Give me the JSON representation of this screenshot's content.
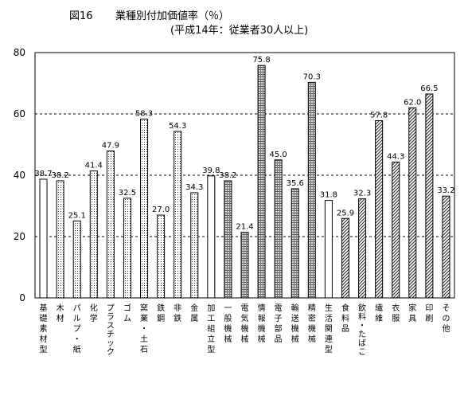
{
  "figure": {
    "label": "図16",
    "title": "業種別付加価値率（％）",
    "subtitle": "(平成14年：従業者30人以上)"
  },
  "chart_data": {
    "type": "bar",
    "title": "業種別付加価値率（％）",
    "subtitle": "(平成14年：従業者30人以上)",
    "xlabel": "",
    "ylabel": "",
    "ylim": [
      0,
      80
    ],
    "yticks": [
      0,
      20,
      40,
      60,
      80
    ],
    "grid": "dashed horizontal at 20, 40, 60",
    "legend": "none",
    "categories": [
      "基礎素材型",
      "木材",
      "パルプ・紙",
      "化学",
      "プラスチック",
      "ゴム",
      "窯業・土石",
      "鉄鋼",
      "非鉄",
      "金属",
      "加工組立型",
      "一般機械",
      "電気機械",
      "情報機械",
      "電子部品",
      "輸送機械",
      "精密機械",
      "生活関連型",
      "食料品",
      "飲料・たばこ",
      "繊維",
      "衣服",
      "家具",
      "印刷",
      "その他"
    ],
    "values": [
      38.7,
      38.2,
      25.1,
      41.4,
      47.9,
      32.5,
      58.3,
      27.0,
      54.3,
      34.3,
      39.8,
      38.2,
      21.4,
      75.8,
      45.0,
      35.6,
      70.3,
      31.8,
      25.9,
      32.3,
      57.8,
      44.3,
      62.0,
      66.5,
      33.2
    ],
    "value_labels": [
      "38.7",
      "38.2",
      "25.1",
      "41.4",
      "47.9",
      "32.5",
      "58.3",
      "27.0",
      "54.3",
      "34.3",
      "39.8",
      "38.2",
      "21.4",
      "75.8",
      "45.0",
      "35.6",
      "70.3",
      "31.8",
      "25.9",
      "32.3",
      "57.8",
      "44.3",
      "62.0",
      "66.5",
      "33.2"
    ],
    "fills": [
      "white",
      "dots",
      "dots",
      "dots",
      "dots",
      "dots",
      "dots",
      "dots",
      "dots",
      "dots",
      "white",
      "grid",
      "grid",
      "grid",
      "grid",
      "grid",
      "grid",
      "white",
      "diag",
      "diag",
      "diag",
      "diag",
      "diag",
      "diag",
      "diag"
    ],
    "vertical_labels": [
      [
        "基",
        "礎",
        "素",
        "材",
        "型"
      ],
      [
        "木",
        "材"
      ],
      [
        "パ",
        "ル",
        "プ",
        "・",
        "紙"
      ],
      [
        "化",
        "学"
      ],
      [
        "プ",
        "ラ",
        "ス",
        "チ",
        "ッ",
        "ク"
      ],
      [
        "ゴ",
        "ム"
      ],
      [
        "窯",
        "業",
        "・",
        "土",
        "石"
      ],
      [
        "鉄",
        "鋼"
      ],
      [
        "非",
        "鉄"
      ],
      [
        "金",
        "属"
      ],
      [
        "加",
        "工",
        "組",
        "立",
        "型"
      ],
      [
        "一",
        "般",
        "機",
        "械"
      ],
      [
        "電",
        "気",
        "機",
        "械"
      ],
      [
        "情",
        "報",
        "機",
        "械"
      ],
      [
        "電",
        "子",
        "部",
        "品"
      ],
      [
        "輸",
        "送",
        "機",
        "械"
      ],
      [
        "精",
        "密",
        "機",
        "械"
      ],
      [
        "生",
        "活",
        "関",
        "連",
        "型"
      ],
      [
        "食",
        "料",
        "品"
      ],
      [
        "飲",
        "料",
        "・",
        "た",
        "ば",
        "こ"
      ],
      [
        "繊",
        "維"
      ],
      [
        "衣",
        "服"
      ],
      [
        "家",
        "具"
      ],
      [
        "印",
        "刷"
      ],
      [
        "そ",
        "の",
        "他"
      ]
    ]
  }
}
